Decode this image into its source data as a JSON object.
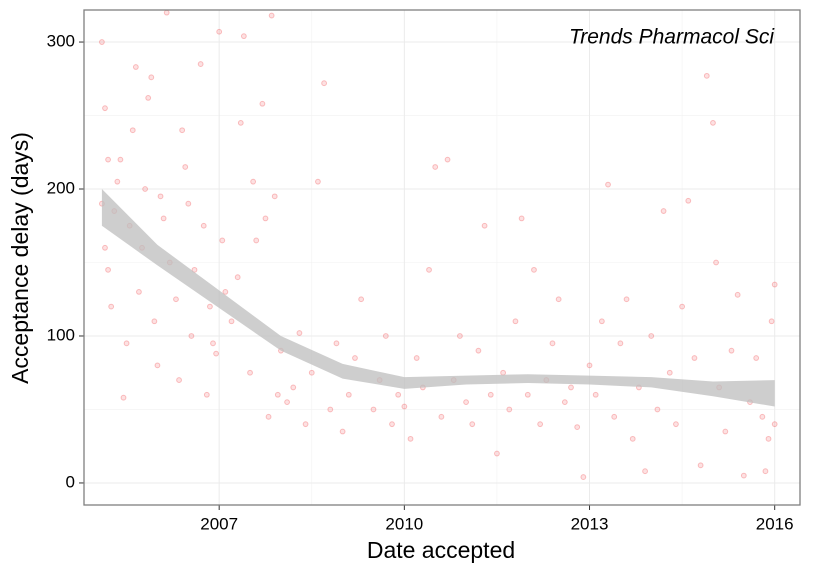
{
  "chart_data": {
    "type": "scatter",
    "annotation": "Trends Pharmacol Sci",
    "x_label": "Date accepted",
    "y_label": "Acceptance delay (days)",
    "xlim": [
      2004.81,
      2016.41
    ],
    "ylim": [
      -15,
      321.8
    ],
    "xticks": [
      2007,
      2010,
      2013,
      2016
    ],
    "yticks": [
      0,
      100,
      200,
      300
    ],
    "grid": true,
    "color": "#f0393c",
    "x": [
      2005.1,
      2005.15,
      2005.2,
      2005.1,
      2005.15,
      2005.2,
      2005.25,
      2005.3,
      2005.35,
      2005.4,
      2005.45,
      2005.5,
      2005.55,
      2005.6,
      2005.65,
      2005.7,
      2005.75,
      2005.8,
      2005.85,
      2005.9,
      2005.95,
      2006.0,
      2006.05,
      2006.1,
      2006.15,
      2006.2,
      2006.3,
      2006.35,
      2006.4,
      2006.45,
      2006.5,
      2006.55,
      2006.6,
      2006.7,
      2006.75,
      2006.8,
      2006.85,
      2006.9,
      2006.95,
      2007.0,
      2007.05,
      2007.1,
      2007.2,
      2007.3,
      2007.35,
      2007.4,
      2007.5,
      2007.55,
      2007.6,
      2007.7,
      2007.75,
      2007.8,
      2007.85,
      2007.9,
      2007.95,
      2008.0,
      2008.1,
      2008.2,
      2008.3,
      2008.4,
      2008.5,
      2008.6,
      2008.7,
      2008.8,
      2008.9,
      2009.0,
      2009.1,
      2009.2,
      2009.3,
      2009.5,
      2009.6,
      2009.7,
      2009.8,
      2009.9,
      2010.0,
      2010.1,
      2010.2,
      2010.3,
      2010.4,
      2010.5,
      2010.6,
      2010.7,
      2010.8,
      2010.9,
      2011.0,
      2011.1,
      2011.2,
      2011.3,
      2011.4,
      2011.5,
      2011.6,
      2011.7,
      2011.8,
      2011.9,
      2012.0,
      2012.1,
      2012.2,
      2012.3,
      2012.4,
      2012.5,
      2012.6,
      2012.7,
      2012.8,
      2012.9,
      2013.0,
      2013.1,
      2013.2,
      2013.3,
      2013.4,
      2013.5,
      2013.6,
      2013.7,
      2013.8,
      2013.9,
      2014.0,
      2014.1,
      2014.2,
      2014.3,
      2014.4,
      2014.5,
      2014.6,
      2014.7,
      2014.8,
      2014.9,
      2015.0,
      2015.05,
      2015.1,
      2015.2,
      2015.3,
      2015.4,
      2015.5,
      2015.6,
      2015.7,
      2015.8,
      2015.9,
      2015.95,
      2016.0,
      2016.0,
      2015.85
    ],
    "values": [
      300,
      255,
      220,
      190,
      160,
      145,
      120,
      185,
      205,
      220,
      58,
      95,
      175,
      240,
      283,
      130,
      160,
      200,
      262,
      276,
      110,
      80,
      195,
      180,
      320,
      150,
      125,
      70,
      240,
      215,
      190,
      100,
      145,
      285,
      175,
      60,
      120,
      95,
      88,
      307,
      165,
      130,
      110,
      140,
      245,
      304,
      75,
      205,
      165,
      258,
      180,
      45,
      318,
      195,
      60,
      90,
      55,
      65,
      102,
      40,
      75,
      205,
      272,
      50,
      95,
      35,
      60,
      85,
      125,
      50,
      70,
      100,
      40,
      60,
      52,
      30,
      85,
      65,
      145,
      215,
      45,
      220,
      70,
      100,
      55,
      40,
      90,
      175,
      60,
      20,
      75,
      50,
      110,
      180,
      60,
      145,
      40,
      70,
      95,
      125,
      55,
      65,
      38,
      4,
      80,
      60,
      110,
      203,
      45,
      95,
      125,
      30,
      65,
      8,
      100,
      50,
      185,
      75,
      40,
      120,
      192,
      85,
      12,
      277,
      245,
      150,
      65,
      35,
      90,
      128,
      5,
      55,
      85,
      45,
      30,
      110,
      135,
      40,
      8
    ],
    "smooth": {
      "color": "#bdbdbd",
      "x": [
        2005.1,
        2006,
        2007,
        2008,
        2009,
        2010,
        2011,
        2012,
        2013,
        2014,
        2015,
        2016
      ],
      "lower": [
        175,
        148,
        119,
        90,
        71,
        64,
        67,
        68,
        67,
        65,
        59,
        52
      ],
      "upper": [
        200,
        162,
        131,
        100,
        81,
        72,
        73,
        74,
        73,
        72,
        69,
        70
      ]
    }
  }
}
